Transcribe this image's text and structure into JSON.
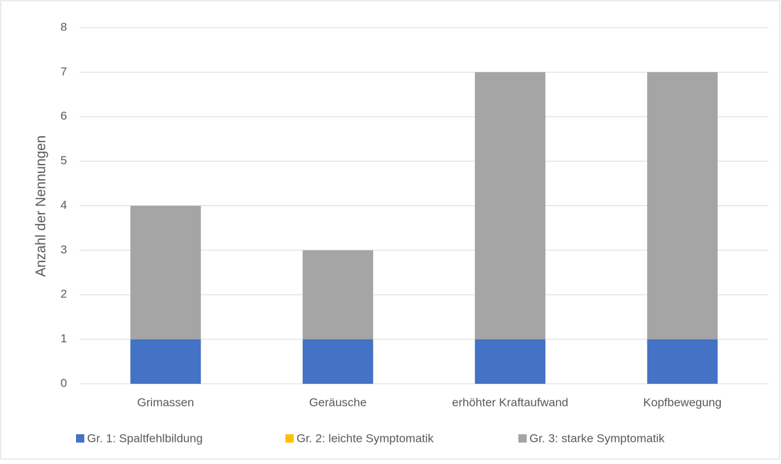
{
  "chart_data": {
    "type": "stacked_bar",
    "y_label": "Anzahl der Nennungen",
    "categories": [
      "Grimassen",
      "Geräusche",
      "erhöhter Kraftaufwand",
      "Kopfbewegung"
    ],
    "series": [
      {
        "name": "Gr. 1: Spaltfehlbildung",
        "color": "#4472c4",
        "values": [
          1,
          1,
          1,
          1
        ]
      },
      {
        "name": "Gr. 2: leichte Symptomatik",
        "color": "#ffc000",
        "values": [
          0,
          0,
          0,
          0
        ]
      },
      {
        "name": "Gr. 3: starke Symptomatik",
        "color": "#a5a5a5",
        "values": [
          3,
          2,
          6,
          6
        ]
      }
    ],
    "ylim": [
      0,
      8
    ],
    "yticks": [
      0,
      1,
      2,
      3,
      4,
      5,
      6,
      7,
      8
    ],
    "grid": true,
    "legend": "bottom"
  }
}
